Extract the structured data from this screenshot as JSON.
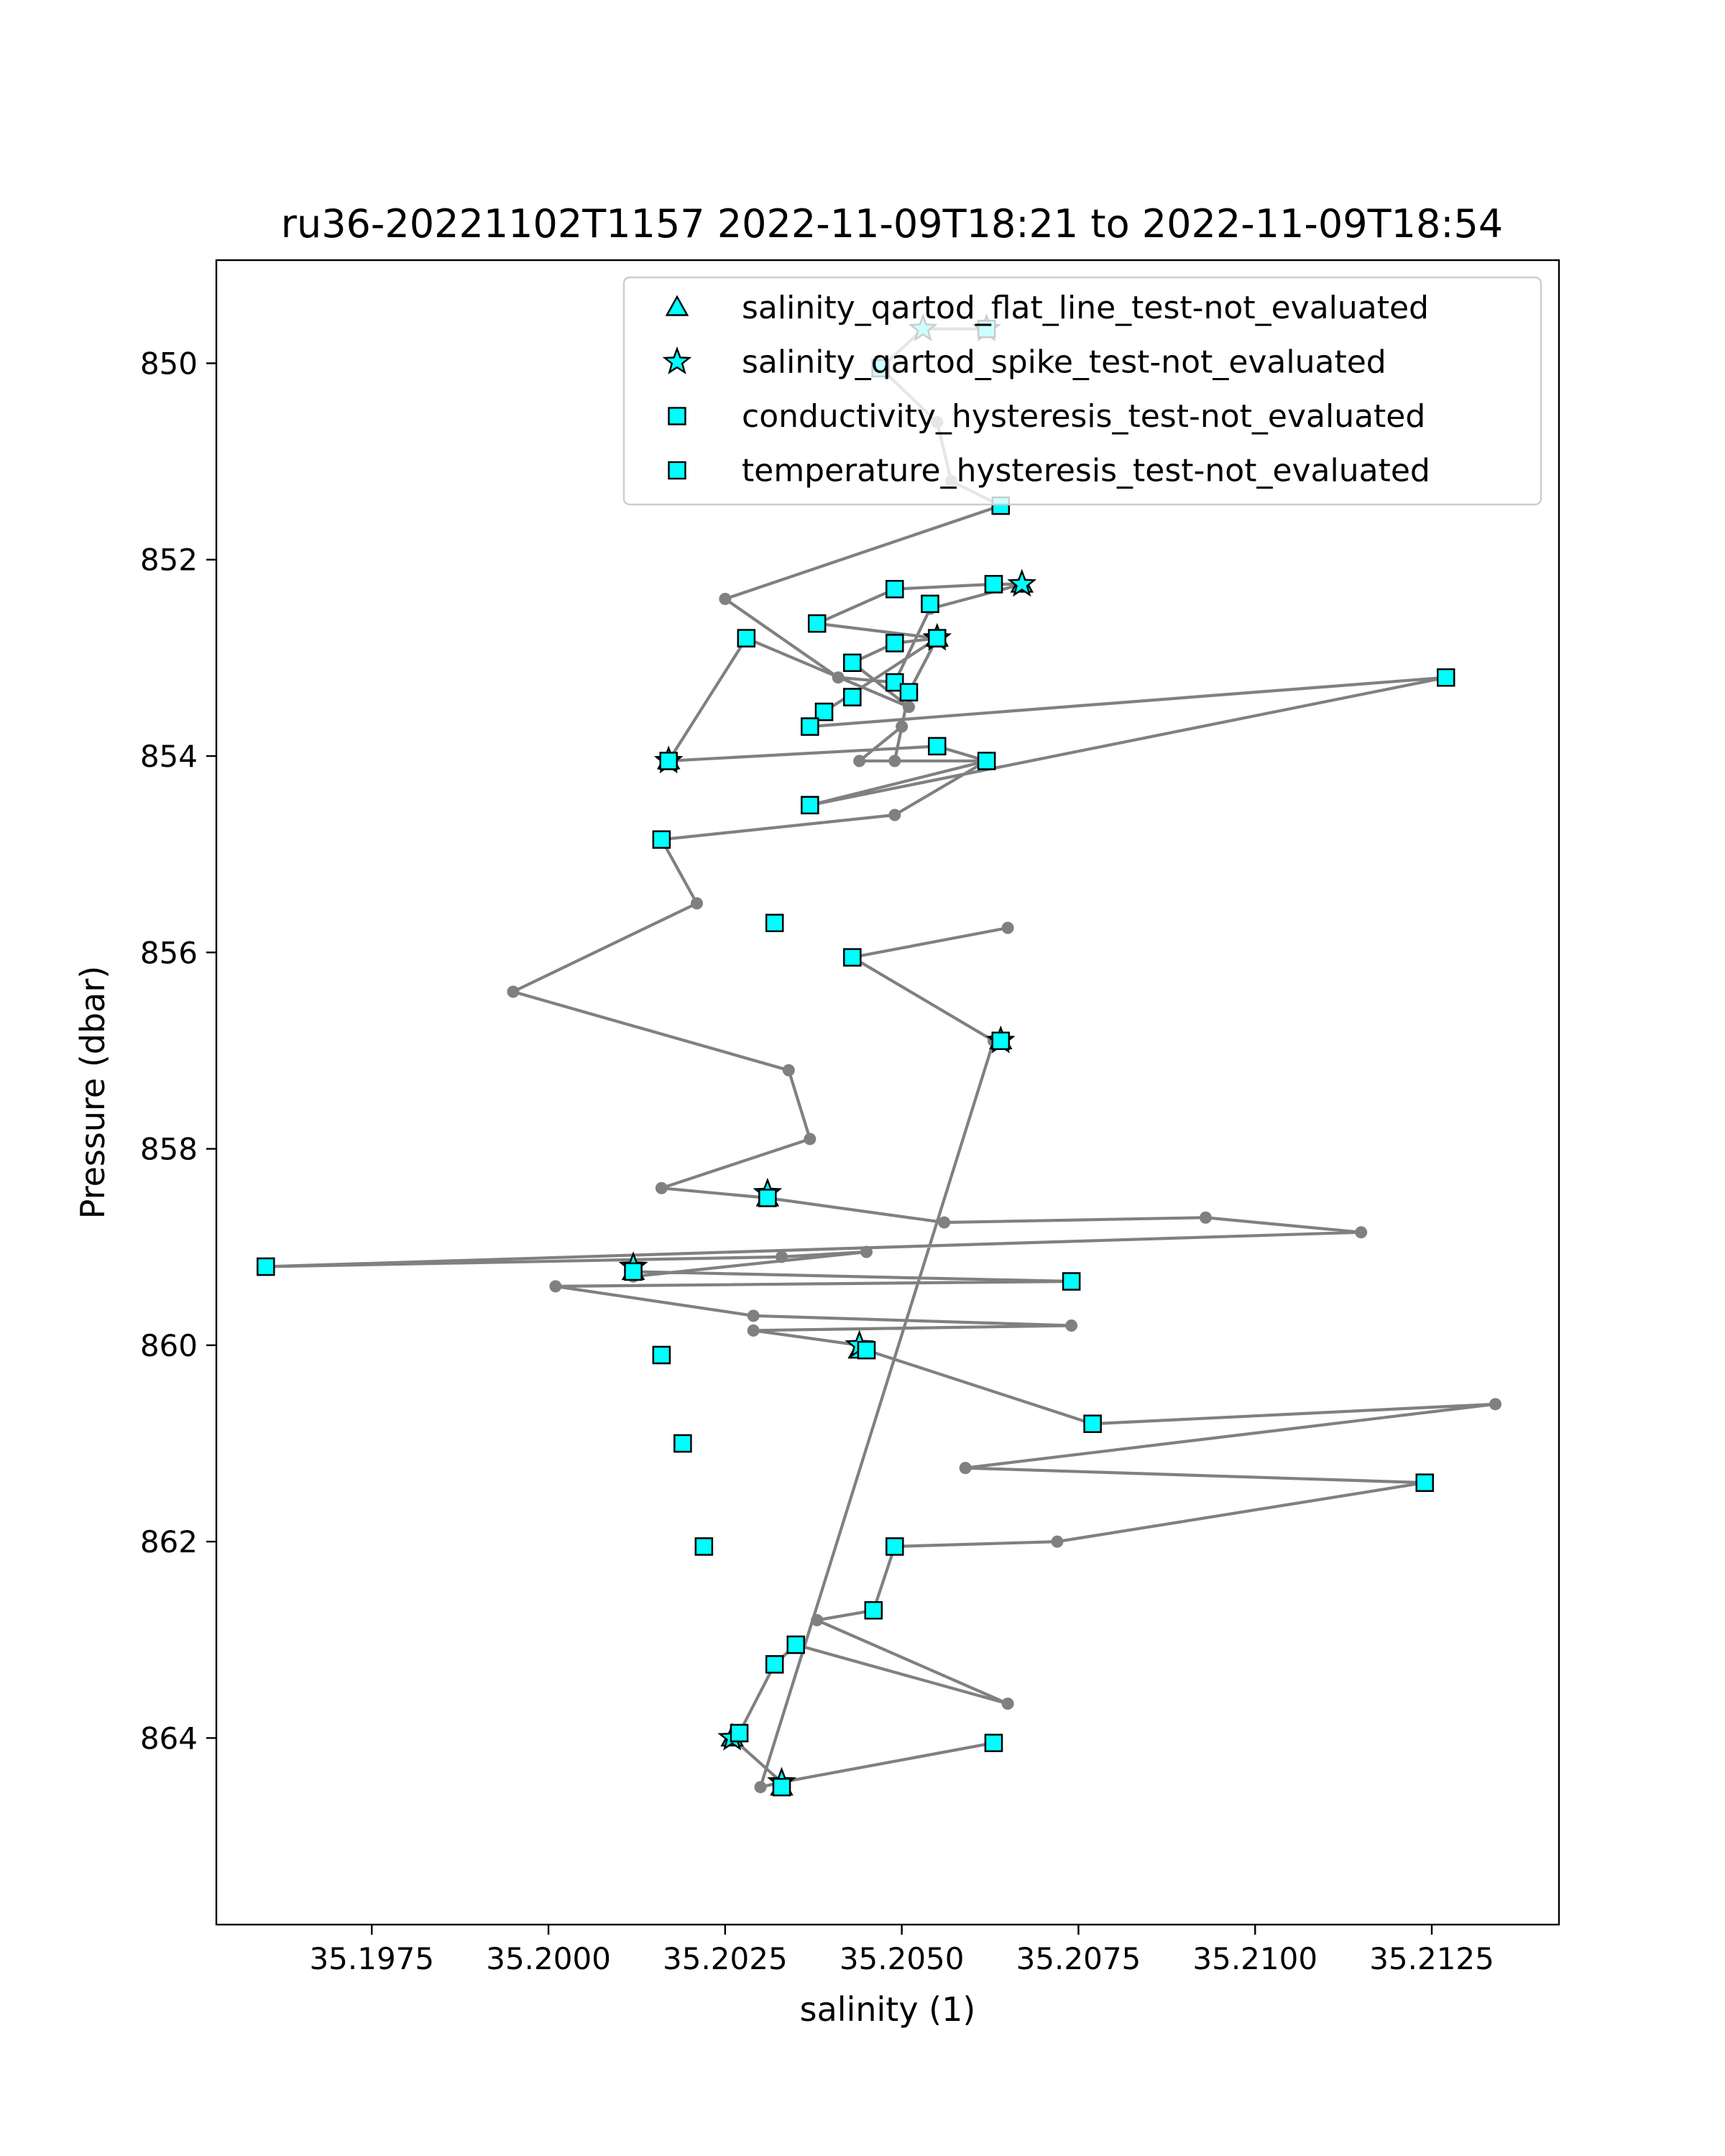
{
  "chart_data": {
    "type": "line",
    "title": "ru36-20221102T1157 2022-11-09T18:21 to 2022-11-09T18:54",
    "xlabel": "salinity (1)",
    "ylabel": "Pressure (dbar)",
    "xlim": [
      35.1953,
      35.2143
    ],
    "ylim": [
      865.9,
      848.95
    ],
    "y_inverted": true,
    "grid": false,
    "legend_position": "top-right",
    "x_ticks": [
      {
        "value": 35.1975,
        "label": "35.1975"
      },
      {
        "value": 35.2,
        "label": "35.2000"
      },
      {
        "value": 35.2025,
        "label": "35.2025"
      },
      {
        "value": 35.205,
        "label": "35.2050"
      },
      {
        "value": 35.2075,
        "label": "35.2075"
      },
      {
        "value": 35.21,
        "label": "35.2100"
      },
      {
        "value": 35.2125,
        "label": "35.2125"
      }
    ],
    "y_ticks": [
      {
        "value": 850,
        "label": "850"
      },
      {
        "value": 852,
        "label": "852"
      },
      {
        "value": 854,
        "label": "854"
      },
      {
        "value": 856,
        "label": "856"
      },
      {
        "value": 858,
        "label": "858"
      },
      {
        "value": 860,
        "label": "860"
      },
      {
        "value": 862,
        "label": "862"
      },
      {
        "value": 864,
        "label": "864"
      }
    ],
    "line_color": "#808080",
    "marker_color": "#00ffff",
    "profile": {
      "x": [
        35.2062,
        35.2053,
        35.2047,
        35.2055,
        35.2057,
        35.2064,
        35.2025,
        35.2041,
        35.2049,
        35.2054,
        35.2067,
        35.2063,
        35.2049,
        35.2038,
        35.2055,
        35.2049,
        35.2043,
        35.2051,
        35.2028,
        35.2017,
        35.2055,
        35.2062,
        35.2044,
        35.205,
        35.2049,
        35.2051,
        35.2055,
        35.2039,
        35.2037,
        35.2127,
        35.2037,
        35.2062,
        35.2049,
        35.2016,
        35.2021,
        35.1995,
        35.2034,
        35.2037,
        35.2016,
        35.2031,
        35.2056,
        35.2093,
        35.2115,
        35.196,
        35.2033,
        35.2045,
        35.2012,
        35.2012,
        35.2074,
        35.2001,
        35.2029,
        35.2074,
        35.2029,
        35.2044,
        35.2045,
        35.2077,
        35.2134,
        35.2059,
        35.2124,
        35.2072,
        35.2049,
        35.2046,
        35.2038,
        35.2065,
        35.2035,
        35.2032,
        35.2027,
        35.2026,
        35.2033,
        35.2063,
        35.2033,
        35.203,
        35.2063,
        35.2043,
        35.2065
      ],
      "y": [
        849.65,
        849.65,
        850.05,
        850.6,
        851.2,
        851.45,
        852.4,
        853.2,
        853.25,
        852.5,
        852.25,
        852.25,
        852.3,
        852.65,
        852.8,
        852.85,
        853.05,
        853.5,
        852.8,
        854.05,
        853.9,
        854.05,
        854.05,
        853.7,
        854.05,
        853.35,
        852.8,
        853.55,
        853.7,
        853.2,
        854.5,
        854.05,
        854.6,
        854.85,
        855.5,
        856.4,
        857.2,
        857.9,
        858.4,
        858.5,
        858.75,
        858.7,
        858.85,
        859.2,
        859.1,
        859.05,
        859.3,
        859.25,
        859.35,
        859.4,
        859.7,
        859.8,
        859.85,
        860.0,
        860.05,
        860.8,
        860.6,
        861.25,
        861.4,
        862.0,
        862.05,
        862.7,
        862.8,
        863.65,
        863.05,
        863.25,
        863.95,
        864.0,
        864.45,
        864.05,
        864.45,
        864.5,
        856.9,
        856.05,
        855.75
      ]
    },
    "series": [
      {
        "name": "salinity_qartod_flat_line_test-not_evaluated",
        "marker": "triangle",
        "x": [
          35.2017,
          35.2067,
          35.2055,
          35.2064,
          35.2031,
          35.2012,
          35.2044,
          35.2026,
          35.2033
        ],
        "y": [
          854.05,
          852.25,
          852.8,
          856.9,
          858.5,
          859.25,
          860.05,
          864.0,
          864.5
        ]
      },
      {
        "name": "salinity_qartod_spike_test-not_evaluated",
        "marker": "star",
        "x": [
          35.2053,
          35.2062,
          35.2067,
          35.2055,
          35.2017,
          35.2064,
          35.2031,
          35.2012,
          35.2044,
          35.2026,
          35.2033
        ],
        "y": [
          849.65,
          849.65,
          852.25,
          852.8,
          854.05,
          856.9,
          858.45,
          859.2,
          860.0,
          864.0,
          864.45
        ]
      },
      {
        "name": "conductivity_hysteresis_test-not_evaluated",
        "marker": "square",
        "x": [
          35.2062,
          35.2047,
          35.2064,
          35.2063,
          35.2049,
          35.2054,
          35.2038,
          35.2028,
          35.2055,
          35.2049,
          35.2043,
          35.2049,
          35.2051,
          35.2127,
          35.2043,
          35.2039,
          35.2037,
          35.2055,
          35.2062,
          35.2017,
          35.2037,
          35.2016,
          35.2032,
          35.2043,
          35.2064,
          35.2031,
          35.196,
          35.2012,
          35.2074,
          35.2045,
          35.2016,
          35.2077,
          35.2019,
          35.2124,
          35.2022,
          35.2049,
          35.2046,
          35.2035,
          35.2032,
          35.2027,
          35.2063,
          35.2033
        ],
        "y": [
          849.65,
          850.05,
          851.45,
          852.25,
          852.3,
          852.45,
          852.65,
          852.8,
          852.8,
          852.85,
          853.05,
          853.25,
          853.35,
          853.2,
          853.4,
          853.55,
          853.7,
          853.9,
          854.05,
          854.05,
          854.5,
          854.85,
          855.7,
          856.05,
          856.9,
          858.5,
          859.2,
          859.25,
          859.35,
          860.05,
          860.1,
          860.8,
          861.0,
          861.4,
          862.05,
          862.05,
          862.7,
          863.05,
          863.25,
          863.95,
          864.05,
          864.5
        ]
      },
      {
        "name": "temperature_hysteresis_test-not_evaluated",
        "marker": "square",
        "x": [
          35.2062,
          35.2047,
          35.2064,
          35.2063,
          35.2049,
          35.2054,
          35.2038,
          35.2028,
          35.2055,
          35.2049,
          35.2043,
          35.2049,
          35.2051,
          35.2127,
          35.2043,
          35.2039,
          35.2037,
          35.2055,
          35.2062,
          35.2017,
          35.2037,
          35.2016,
          35.2032,
          35.2043,
          35.2064,
          35.2031,
          35.196,
          35.2012,
          35.2074,
          35.2045,
          35.2016,
          35.2077,
          35.2019,
          35.2124,
          35.2022,
          35.2049,
          35.2046,
          35.2035,
          35.2032,
          35.2027,
          35.2063,
          35.2033
        ],
        "y": [
          849.65,
          850.05,
          851.45,
          852.25,
          852.3,
          852.45,
          852.65,
          852.8,
          852.8,
          852.85,
          853.05,
          853.25,
          853.35,
          853.2,
          853.4,
          853.55,
          853.7,
          853.9,
          854.05,
          854.05,
          854.5,
          854.85,
          855.7,
          856.05,
          856.9,
          858.5,
          859.2,
          859.25,
          859.35,
          860.05,
          860.1,
          860.8,
          861.0,
          861.4,
          862.05,
          862.05,
          862.7,
          863.05,
          863.25,
          863.95,
          864.05,
          864.5
        ]
      }
    ]
  }
}
